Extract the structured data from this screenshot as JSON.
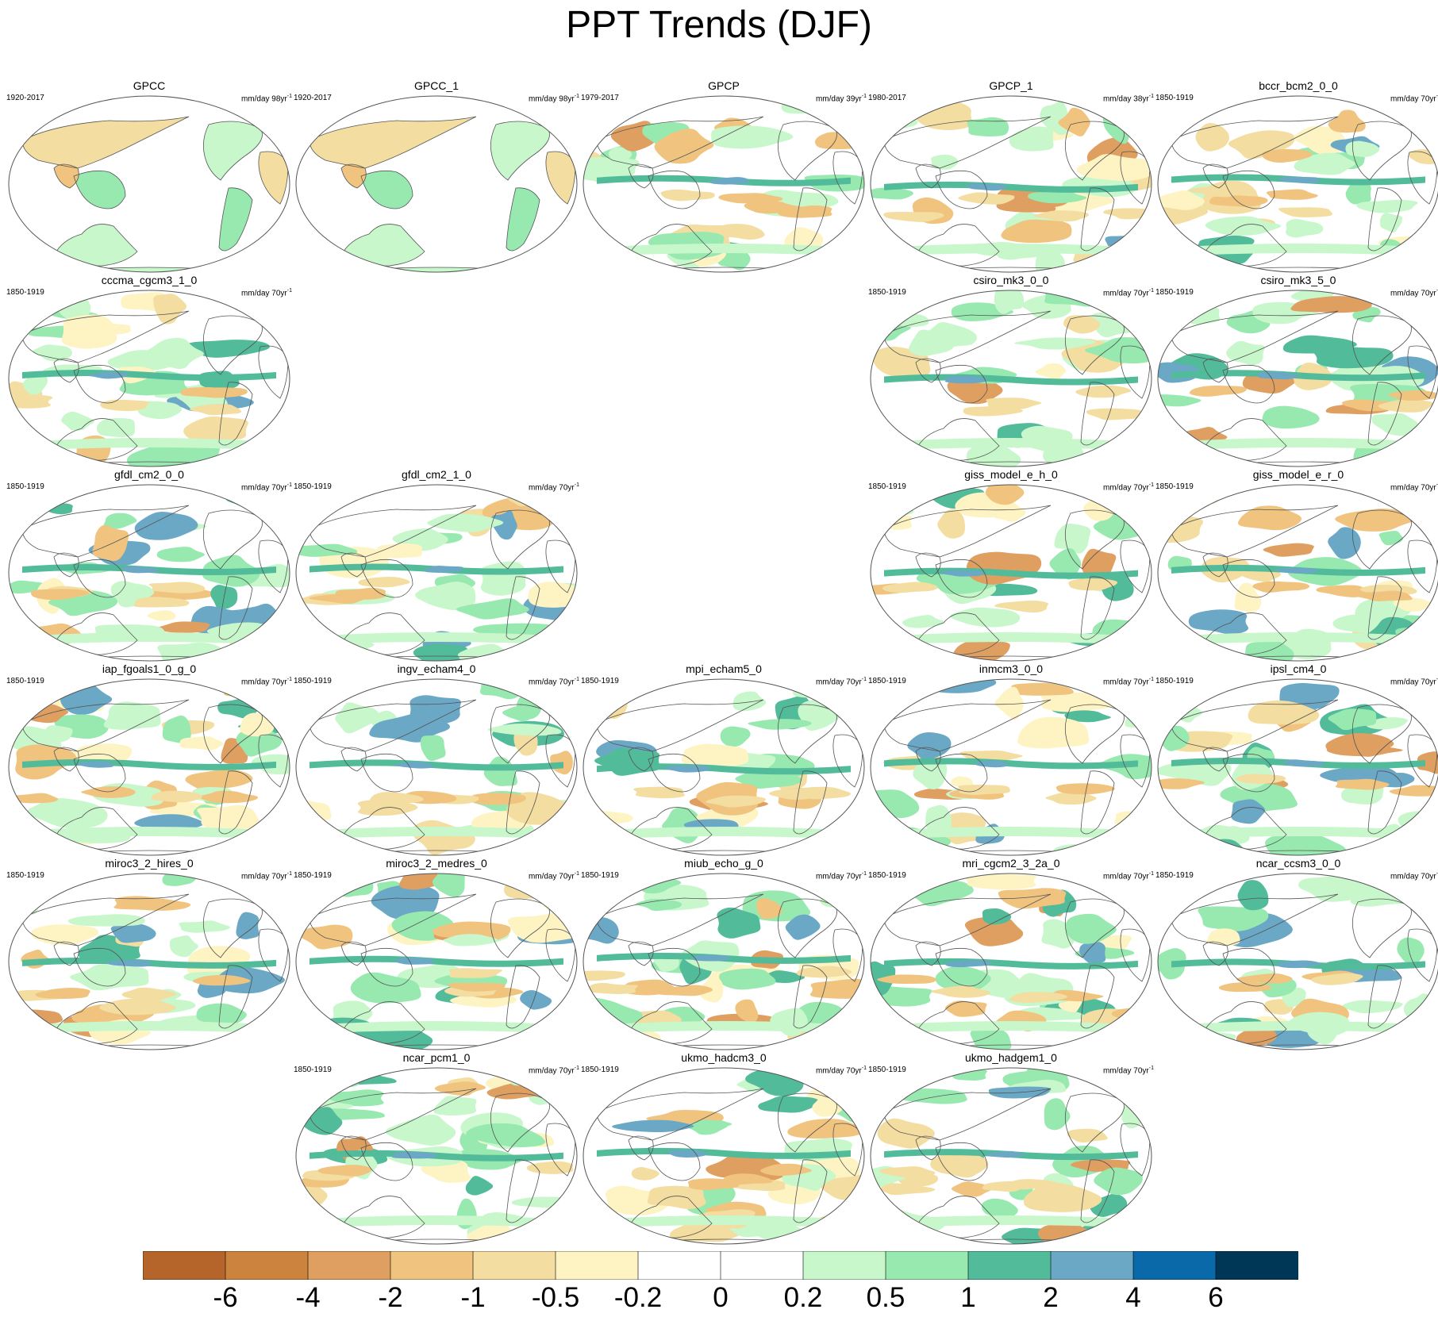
{
  "title": "PPT Trends (DJF)",
  "units_prefix": "mm/day",
  "colorbar": {
    "colors": [
      "#b5652a",
      "#cb833e",
      "#df9f60",
      "#f0c47f",
      "#f4dda0",
      "#fef4c3",
      "#ffffff",
      "#ffffff",
      "#c8f7cb",
      "#97e9b0",
      "#52bb9a",
      "#6aa8c6",
      "#0a6aa9",
      "#013756"
    ],
    "labels": [
      "-6",
      "-4",
      "-2",
      "-1",
      "-0.5",
      "-0.2",
      "0",
      "0.2",
      "0.5",
      "1",
      "2",
      "4",
      "6"
    ]
  },
  "panels": [
    {
      "name": "GPCC",
      "period": "1920-2017",
      "trend_years": "98",
      "row": 0,
      "col": 0,
      "style": "land"
    },
    {
      "name": "GPCC_1",
      "period": "1920-2017",
      "trend_years": "98",
      "row": 0,
      "col": 1,
      "style": "land"
    },
    {
      "name": "GPCP",
      "period": "1979-2017",
      "trend_years": "39",
      "row": 0,
      "col": 2,
      "style": "full"
    },
    {
      "name": "GPCP_1",
      "period": "1980-2017",
      "trend_years": "38",
      "row": 0,
      "col": 3,
      "style": "full"
    },
    {
      "name": "bccr_bcm2_0_0",
      "period": "1850-1919",
      "trend_years": "70",
      "row": 0,
      "col": 4,
      "style": "full"
    },
    {
      "name": "cccma_cgcm3_1_0",
      "period": "1850-1919",
      "trend_years": "70",
      "row": 1,
      "col": 0,
      "style": "full"
    },
    {
      "name": "csiro_mk3_0_0",
      "period": "1850-1919",
      "trend_years": "70",
      "row": 1,
      "col": 3,
      "style": "full"
    },
    {
      "name": "csiro_mk3_5_0",
      "period": "1850-1919",
      "trend_years": "70",
      "row": 1,
      "col": 4,
      "style": "full"
    },
    {
      "name": "gfdl_cm2_0_0",
      "period": "1850-1919",
      "trend_years": "70",
      "row": 2,
      "col": 0,
      "style": "full"
    },
    {
      "name": "gfdl_cm2_1_0",
      "period": "1850-1919",
      "trend_years": "70",
      "row": 2,
      "col": 1,
      "style": "full"
    },
    {
      "name": "giss_model_e_h_0",
      "period": "1850-1919",
      "trend_years": "70",
      "row": 2,
      "col": 3,
      "style": "full"
    },
    {
      "name": "giss_model_e_r_0",
      "period": "1850-1919",
      "trend_years": "70",
      "row": 2,
      "col": 4,
      "style": "full"
    },
    {
      "name": "iap_fgoals1_0_g_0",
      "period": "1850-1919",
      "trend_years": "70",
      "row": 3,
      "col": 0,
      "style": "full"
    },
    {
      "name": "ingv_echam4_0",
      "period": "1850-1919",
      "trend_years": "70",
      "row": 3,
      "col": 1,
      "style": "full"
    },
    {
      "name": "mpi_echam5_0",
      "period": "1850-1919",
      "trend_years": "70",
      "row": 3,
      "col": 2,
      "style": "full"
    },
    {
      "name": "inmcm3_0_0",
      "period": "1850-1919",
      "trend_years": "70",
      "row": 3,
      "col": 3,
      "style": "full"
    },
    {
      "name": "ipsl_cm4_0",
      "period": "1850-1919",
      "trend_years": "70",
      "row": 3,
      "col": 4,
      "style": "full"
    },
    {
      "name": "miroc3_2_hires_0",
      "period": "1850-1919",
      "trend_years": "70",
      "row": 4,
      "col": 0,
      "style": "full"
    },
    {
      "name": "miroc3_2_medres_0",
      "period": "1850-1919",
      "trend_years": "70",
      "row": 4,
      "col": 1,
      "style": "full"
    },
    {
      "name": "miub_echo_g_0",
      "period": "1850-1919",
      "trend_years": "70",
      "row": 4,
      "col": 2,
      "style": "full"
    },
    {
      "name": "mri_cgcm2_3_2a_0",
      "period": "1850-1919",
      "trend_years": "70",
      "row": 4,
      "col": 3,
      "style": "full"
    },
    {
      "name": "ncar_ccsm3_0_0",
      "period": "1850-1919",
      "trend_years": "70",
      "row": 4,
      "col": 4,
      "style": "full"
    },
    {
      "name": "ncar_pcm1_0",
      "period": "1850-1919",
      "trend_years": "70",
      "row": 5,
      "col": 1,
      "style": "full"
    },
    {
      "name": "ukmo_hadcm3_0",
      "period": "1850-1919",
      "trend_years": "70",
      "row": 5,
      "col": 2,
      "style": "full"
    },
    {
      "name": "ukmo_hadgem1_0",
      "period": "1850-1919",
      "trend_years": "70",
      "row": 5,
      "col": 3,
      "style": "full"
    }
  ]
}
